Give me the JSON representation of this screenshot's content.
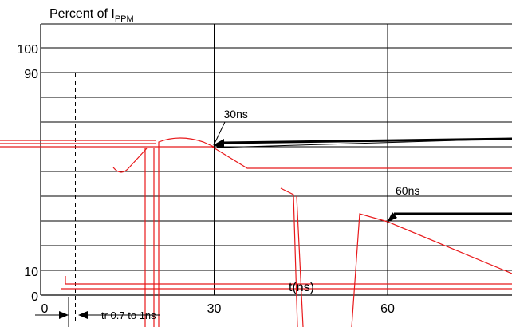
{
  "chart_data": {
    "type": "line",
    "ylabel_main": "Percent of I",
    "ylabel_sub": "PPM",
    "xlabel": "t(ns)",
    "x_ticks": [
      {
        "value": 0,
        "label": "0"
      },
      {
        "value": 30,
        "label": "30"
      },
      {
        "value": 60,
        "label": "60"
      }
    ],
    "y_ticks": [
      {
        "value": 100,
        "label": "100"
      },
      {
        "value": 90,
        "label": "90"
      },
      {
        "value": 10,
        "label": "10"
      },
      {
        "value": 0,
        "label": "0"
      }
    ],
    "annotations": [
      {
        "label": "30ns",
        "x": 30
      },
      {
        "label": "60ns",
        "x": 60
      }
    ],
    "rise_time_label": "tr 0.7 to 1ns",
    "rise_time_x": 6,
    "grid": true,
    "colors": {
      "grid": "#000000",
      "trace": "#e8191b",
      "arrow": "#000000"
    }
  }
}
